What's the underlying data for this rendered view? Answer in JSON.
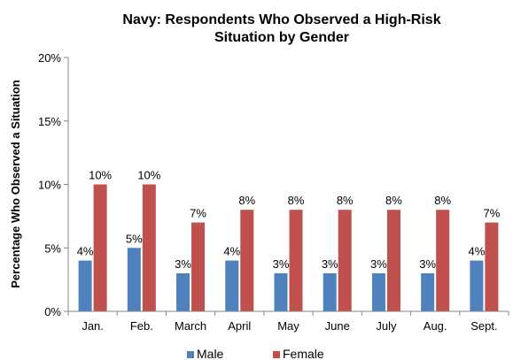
{
  "chart_data": {
    "type": "bar",
    "title": "Navy: Respondents Who Observed a High-Risk Situation by Gender",
    "title_lines": [
      "Navy: Respondents Who Observed a High-Risk",
      "Situation by Gender"
    ],
    "xlabel": "",
    "ylabel": "Percentage Who Observed a Situation",
    "ylim": [
      0,
      20
    ],
    "yticks": [
      0,
      5,
      10,
      15,
      20
    ],
    "ytick_labels": [
      "0%",
      "5%",
      "10%",
      "15%",
      "20%"
    ],
    "grid": false,
    "legend_position": "bottom",
    "categories": [
      "Jan.",
      "Feb.",
      "March",
      "April",
      "May",
      "June",
      "July",
      "Aug.",
      "Sept."
    ],
    "series": [
      {
        "name": "Male",
        "color": "#4F81BD",
        "values": [
          4,
          5,
          3,
          4,
          3,
          3,
          3,
          3,
          4
        ],
        "labels": [
          "4%",
          "5%",
          "3%",
          "4%",
          "3%",
          "3%",
          "3%",
          "3%",
          "4%"
        ]
      },
      {
        "name": "Female",
        "color": "#C0504D",
        "values": [
          10,
          10,
          7,
          8,
          8,
          8,
          8,
          8,
          7
        ],
        "labels": [
          "10%",
          "10%",
          "7%",
          "8%",
          "8%",
          "8%",
          "8%",
          "8%",
          "7%"
        ]
      }
    ]
  }
}
